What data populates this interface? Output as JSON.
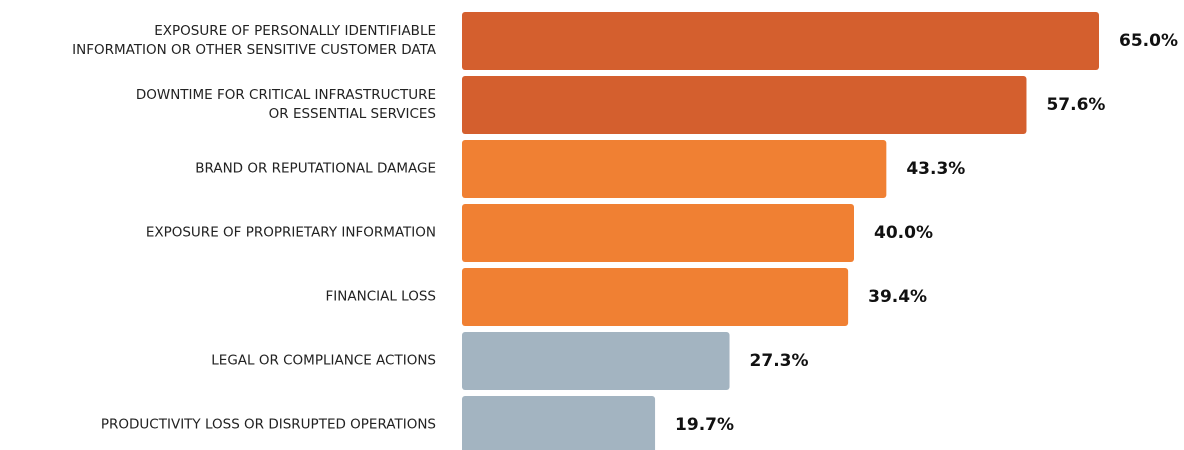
{
  "chart_data": {
    "type": "bar",
    "orientation": "horizontal",
    "categories": [
      "EXPOSURE OF PERSONALLY IDENTIFIABLE\nINFORMATION OR OTHER SENSITIVE CUSTOMER DATA",
      "DOWNTIME FOR CRITICAL INFRASTRUCTURE\nOR ESSENTIAL SERVICES",
      "BRAND OR REPUTATIONAL DAMAGE",
      "EXPOSURE OF PROPRIETARY INFORMATION",
      "FINANCIAL LOSS",
      "LEGAL OR COMPLIANCE ACTIONS",
      "PRODUCTIVITY LOSS OR DISRUPTED OPERATIONS"
    ],
    "values": [
      65.0,
      57.6,
      43.3,
      40.0,
      39.4,
      27.3,
      19.7
    ],
    "value_labels": [
      "65.0%",
      "57.6%",
      "43.3%",
      "40.0%",
      "39.4%",
      "27.3%",
      "19.7%"
    ],
    "colors": [
      "#d45f2e",
      "#d45f2e",
      "#f08033",
      "#f08033",
      "#f08033",
      "#a3b4c1",
      "#a3b4c1"
    ]
  }
}
